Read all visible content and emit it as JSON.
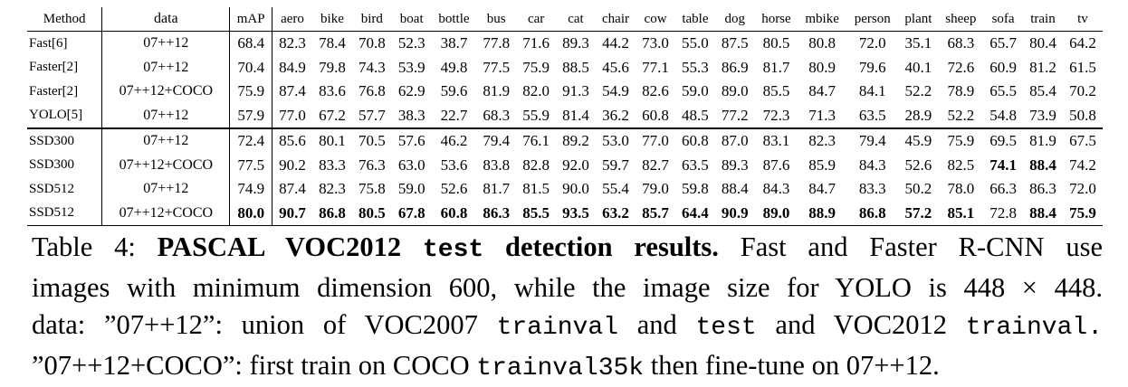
{
  "table": {
    "header": [
      "Method",
      "data",
      "mAP",
      "aero",
      "bike",
      "bird",
      "boat",
      "bottle",
      "bus",
      "car",
      "cat",
      "chair",
      "cow",
      "table",
      "dog",
      "horse",
      "mbike",
      "person",
      "plant",
      "sheep",
      "sofa",
      "train",
      "tv"
    ],
    "rows": [
      [
        "Fast[6]",
        "07++12",
        "68.4",
        "82.3",
        "78.4",
        "70.8",
        "52.3",
        "38.7",
        "77.8",
        "71.6",
        "89.3",
        "44.2",
        "73.0",
        "55.0",
        "87.5",
        "80.5",
        "80.8",
        "72.0",
        "35.1",
        "68.3",
        "65.7",
        "80.4",
        "64.2"
      ],
      [
        "Faster[2]",
        "07++12",
        "70.4",
        "84.9",
        "79.8",
        "74.3",
        "53.9",
        "49.8",
        "77.5",
        "75.9",
        "88.5",
        "45.6",
        "77.1",
        "55.3",
        "86.9",
        "81.7",
        "80.9",
        "79.6",
        "40.1",
        "72.6",
        "60.9",
        "81.2",
        "61.5"
      ],
      [
        "Faster[2]",
        "07++12+COCO",
        "75.9",
        "87.4",
        "83.6",
        "76.8",
        "62.9",
        "59.6",
        "81.9",
        "82.0",
        "91.3",
        "54.9",
        "82.6",
        "59.0",
        "89.0",
        "85.5",
        "84.7",
        "84.1",
        "52.2",
        "78.9",
        "65.5",
        "85.4",
        "70.2"
      ],
      [
        "YOLO[5]",
        "07++12",
        "57.9",
        "77.0",
        "67.2",
        "57.7",
        "38.3",
        "22.7",
        "68.3",
        "55.9",
        "81.4",
        "36.2",
        "60.8",
        "48.5",
        "77.2",
        "72.3",
        "71.3",
        "63.5",
        "28.9",
        "52.2",
        "54.8",
        "73.9",
        "50.8"
      ],
      [
        "SSD300",
        "07++12",
        "72.4",
        "85.6",
        "80.1",
        "70.5",
        "57.6",
        "46.2",
        "79.4",
        "76.1",
        "89.2",
        "53.0",
        "77.0",
        "60.8",
        "87.0",
        "83.1",
        "82.3",
        "79.4",
        "45.9",
        "75.9",
        "69.5",
        "81.9",
        "67.5"
      ],
      [
        "SSD300",
        "07++12+COCO",
        "77.5",
        "90.2",
        "83.3",
        "76.3",
        "63.0",
        "53.6",
        "83.8",
        "82.8",
        "92.0",
        "59.7",
        "82.7",
        "63.5",
        "89.3",
        "87.6",
        "85.9",
        "84.3",
        "52.6",
        "82.5",
        "74.1",
        "88.4",
        "74.2"
      ],
      [
        "SSD512",
        "07++12",
        "74.9",
        "87.4",
        "82.3",
        "75.8",
        "59.0",
        "52.6",
        "81.7",
        "81.5",
        "90.0",
        "55.4",
        "79.0",
        "59.8",
        "88.4",
        "84.3",
        "84.7",
        "83.3",
        "50.2",
        "78.0",
        "66.3",
        "86.3",
        "72.0"
      ],
      [
        "SSD512",
        "07++12+COCO",
        "80.0",
        "90.7",
        "86.8",
        "80.5",
        "67.8",
        "60.8",
        "86.3",
        "85.5",
        "93.5",
        "63.2",
        "85.7",
        "64.4",
        "90.9",
        "89.0",
        "88.9",
        "86.8",
        "57.2",
        "85.1",
        "72.8",
        "88.4",
        "75.9"
      ]
    ]
  },
  "caption": {
    "parts": [
      "Table 4: ",
      "PASCAL VOC2012 ",
      "test",
      " detection results.",
      " Fast and Faster R-CNN use",
      "images with minimum dimension 600, while the image size for YOLO is 448 × 448.",
      "data: ”07++12”: union of VOC2007 ",
      "trainval",
      " and ",
      "test",
      " and VOC2012 ",
      "trainval.",
      "”07++12+COCO”: first train on COCO ",
      "trainval35k",
      " then fine-tune on 07++12."
    ]
  }
}
